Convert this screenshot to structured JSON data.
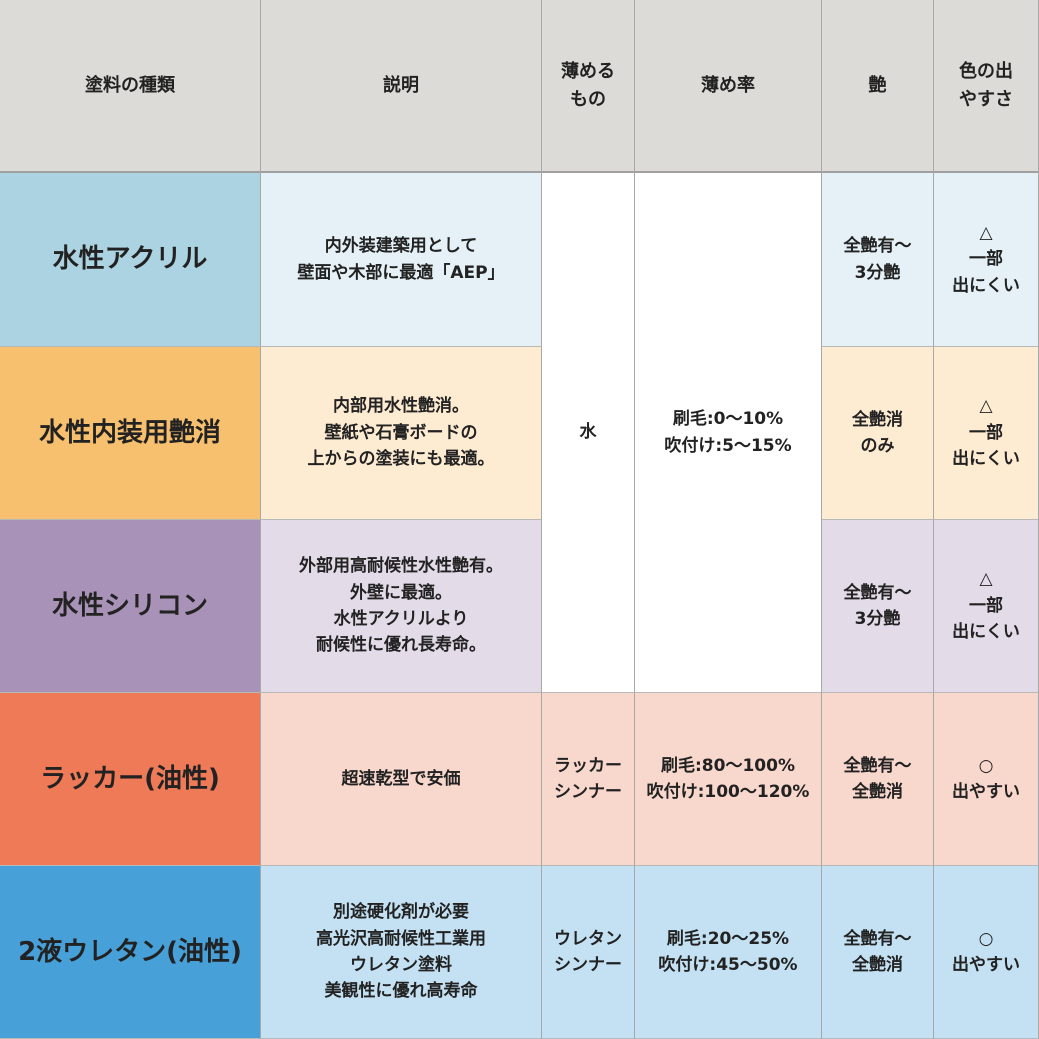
{
  "headers": [
    "塗料の種類",
    "説明",
    "薄める\nもの",
    "薄め率",
    "艶",
    "色の出\nやすさ"
  ],
  "rows": [
    {
      "name": "水性アクリル",
      "desc": "内外装建築用として\n壁面や木部に最適「AEP」",
      "gloss": "全艶有～\n3分艶",
      "color": "△\n一部\n出にくい",
      "dark": "#acd3e2",
      "light": "#e5f1f6"
    },
    {
      "name": "水性内装用艶消",
      "desc": "内部用水性艶消。\n壁紙や石膏ボードの\n上からの塗装にも最適。",
      "gloss": "全艶消\nのみ",
      "color": "△\n一部\n出にくい",
      "dark": "#f7c06e",
      "light": "#fdebd2"
    },
    {
      "name": "水性シリコン",
      "desc": "外部用高耐候性水性艶有。\n外壁に最適。\n水性アクリルより\n耐候性に優れ長寿命。",
      "gloss": "全艶有～\n3分艶",
      "color": "△\n一部\n出にくい",
      "dark": "#a892b8",
      "light": "#e4dbe9"
    },
    {
      "name": "ラッカー(油性)",
      "desc": "超速乾型で安価",
      "thinner": "ラッカー\nシンナー",
      "rate": "刷毛:80～100%\n吹付け:100～120%",
      "gloss": "全艶有～\n全艶消",
      "color": "○\n出やすい",
      "dark": "#ee7a58",
      "light": "#f8d7cd"
    },
    {
      "name": "2液ウレタン(油性)",
      "desc": "別途硬化剤が必要\n高光沢高耐候性工業用\nウレタン塗料\n美観性に優れ高寿命",
      "thinner": "ウレタン\nシンナー",
      "rate": "刷毛:20～25%\n吹付け:45～50%",
      "gloss": "全艶有～\n全艶消",
      "color": "○\n出やすい",
      "dark": "#47a0d8",
      "light": "#c3e1f2"
    }
  ],
  "water_group": {
    "thinner": "水",
    "rate": "刷毛:0～10%\n吹付け:5～15%"
  }
}
